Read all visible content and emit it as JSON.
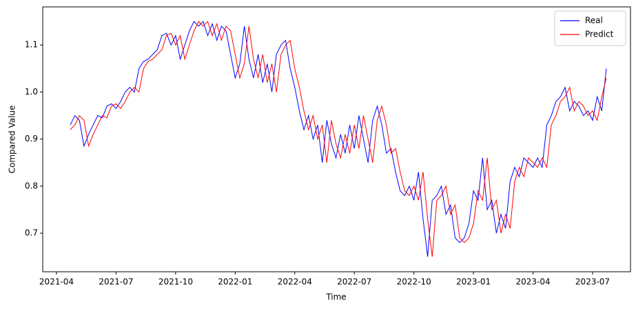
{
  "chart_data": {
    "type": "line",
    "xlabel": "Time",
    "ylabel": "Compared Value",
    "categories": [
      "2021-04",
      null,
      null,
      null,
      null,
      null,
      null,
      null,
      null,
      null,
      null,
      null,
      null,
      "2021-07",
      null,
      null,
      null,
      null,
      null,
      null,
      null,
      null,
      null,
      null,
      null,
      null,
      "2021-10",
      null,
      null,
      null,
      null,
      null,
      null,
      null,
      null,
      null,
      null,
      null,
      null,
      "2022-01",
      null,
      null,
      null,
      null,
      null,
      null,
      null,
      null,
      null,
      null,
      null,
      null,
      "2022-04",
      null,
      null,
      null,
      null,
      null,
      null,
      null,
      null,
      null,
      null,
      null,
      null,
      "2022-07",
      null,
      null,
      null,
      null,
      null,
      null,
      null,
      null,
      null,
      null,
      null,
      null,
      "2022-10",
      null,
      null,
      null,
      null,
      null,
      null,
      null,
      null,
      null,
      null,
      null,
      null,
      "2023-01",
      null,
      null,
      null,
      null,
      null,
      null,
      null,
      null,
      null,
      null,
      null,
      null,
      "2023-04",
      null,
      null,
      null,
      null,
      null,
      null,
      null,
      null,
      null,
      null,
      null,
      null,
      "2023-07",
      null,
      null,
      null
    ],
    "series": [
      {
        "name": "Real",
        "color": "#0000ff",
        "values": [
          null,
          null,
          null,
          0.93,
          0.95,
          0.94,
          0.885,
          0.91,
          0.93,
          0.95,
          0.945,
          0.97,
          0.975,
          0.965,
          0.98,
          1.0,
          1.01,
          1.0,
          1.05,
          1.065,
          1.07,
          1.08,
          1.09,
          1.12,
          1.125,
          1.1,
          1.12,
          1.07,
          1.1,
          1.13,
          1.15,
          1.14,
          1.15,
          1.12,
          1.145,
          1.11,
          1.14,
          1.13,
          1.08,
          1.03,
          1.06,
          1.14,
          1.07,
          1.03,
          1.08,
          1.02,
          1.06,
          1.0,
          1.08,
          1.1,
          1.11,
          1.05,
          1.01,
          0.96,
          0.92,
          0.95,
          0.9,
          0.93,
          0.85,
          0.94,
          0.89,
          0.86,
          0.91,
          0.87,
          0.93,
          0.88,
          0.95,
          0.9,
          0.85,
          0.94,
          0.97,
          0.93,
          0.87,
          0.88,
          0.83,
          0.79,
          0.78,
          0.8,
          0.77,
          0.83,
          0.73,
          0.65,
          0.77,
          0.78,
          0.8,
          0.74,
          0.76,
          0.69,
          0.68,
          0.69,
          0.72,
          0.79,
          0.77,
          0.86,
          0.75,
          0.77,
          0.7,
          0.74,
          0.71,
          0.81,
          0.84,
          0.82,
          0.86,
          0.85,
          0.84,
          0.86,
          0.84,
          0.93,
          0.95,
          0.98,
          0.99,
          1.01,
          0.96,
          0.98,
          0.97,
          0.95,
          0.96,
          0.94,
          0.99,
          0.96,
          1.05
        ]
      },
      {
        "name": "Predict",
        "color": "#ff0000",
        "values": [
          null,
          null,
          null,
          0.92,
          0.93,
          0.95,
          0.94,
          0.885,
          0.91,
          0.93,
          0.95,
          0.945,
          0.97,
          0.975,
          0.965,
          0.98,
          1.0,
          1.01,
          1.0,
          1.05,
          1.065,
          1.07,
          1.08,
          1.09,
          1.12,
          1.125,
          1.1,
          1.12,
          1.07,
          1.1,
          1.13,
          1.15,
          1.14,
          1.15,
          1.12,
          1.145,
          1.11,
          1.14,
          1.13,
          1.08,
          1.03,
          1.06,
          1.14,
          1.07,
          1.03,
          1.08,
          1.02,
          1.06,
          1.0,
          1.08,
          1.1,
          1.11,
          1.05,
          1.01,
          0.96,
          0.92,
          0.95,
          0.9,
          0.93,
          0.85,
          0.94,
          0.89,
          0.86,
          0.91,
          0.87,
          0.93,
          0.88,
          0.95,
          0.9,
          0.85,
          0.94,
          0.97,
          0.93,
          0.87,
          0.88,
          0.83,
          0.79,
          0.78,
          0.8,
          0.77,
          0.83,
          0.73,
          0.65,
          0.77,
          0.78,
          0.8,
          0.74,
          0.76,
          0.69,
          0.68,
          0.69,
          0.72,
          0.79,
          0.77,
          0.86,
          0.75,
          0.77,
          0.7,
          0.74,
          0.71,
          0.81,
          0.84,
          0.82,
          0.86,
          0.85,
          0.84,
          0.86,
          0.84,
          0.93,
          0.95,
          0.98,
          0.99,
          1.01,
          0.96,
          0.98,
          0.97,
          0.95,
          0.96,
          0.94,
          0.99,
          1.03
        ]
      }
    ],
    "ylim": [
      0.618,
      1.181
    ],
    "yticks": [
      0.7,
      0.8,
      0.9,
      {
        "value": 1,
        "label": "1.0"
      },
      1.1
    ],
    "grid": false,
    "legend": "upper right"
  }
}
